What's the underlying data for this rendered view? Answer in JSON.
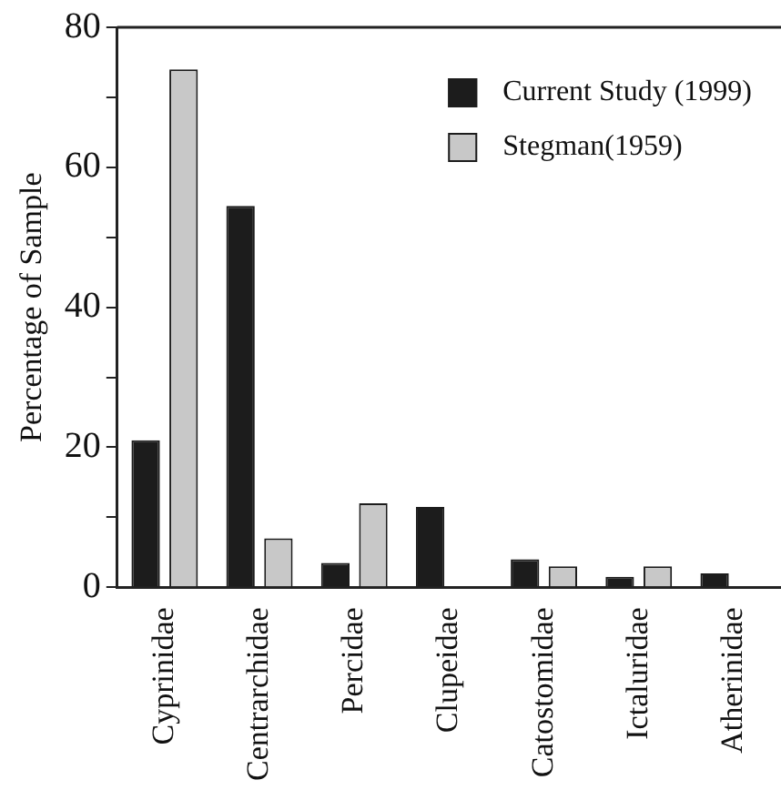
{
  "chart_data": {
    "type": "bar",
    "ylabel": "Percentage of Sample",
    "categories": [
      "Cyprinidae",
      "Centrarchidae",
      "Percidae",
      "Clupeidae",
      "Catostomidae",
      "Ictaluridae",
      "Atherinidae"
    ],
    "series": [
      {
        "name": "Current Study (1999)",
        "color": "#1c1c1c",
        "values": [
          21,
          54.5,
          3.5,
          11.5,
          4,
          1.5,
          2
        ]
      },
      {
        "name": "Stegman(1959)",
        "color": "#c8c8c8",
        "values": [
          74,
          7,
          12,
          0,
          3,
          3,
          null
        ]
      }
    ],
    "ylim": [
      0,
      80
    ],
    "yticks": [
      0,
      {
        "value": 10,
        "label": null
      },
      20,
      {
        "value": 30,
        "label": null
      },
      40,
      {
        "value": 50,
        "label": null
      },
      60,
      {
        "value": 70,
        "label": null
      },
      80
    ],
    "grid": false,
    "legend": "top right"
  }
}
